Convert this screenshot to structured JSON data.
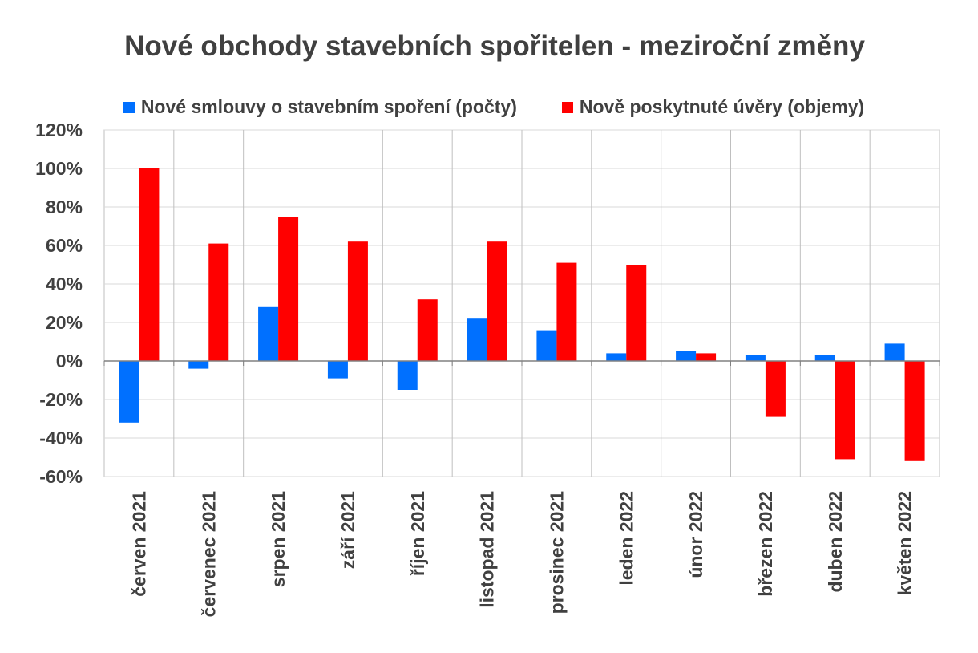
{
  "chart_data": {
    "type": "bar",
    "title": "Nové obchody stavebních spořitelen - meziroční změny",
    "categories": [
      "červen 2021",
      "červenec 2021",
      "srpen 2021",
      "září 2021",
      "říjen 2021",
      "listopad 2021",
      "prosinec 2021",
      "leden 2022",
      "únor 2022",
      "březen 2022",
      "duben 2022",
      "květen 2022"
    ],
    "series": [
      {
        "name": "Nové smlouvy o stavebním spoření (počty)",
        "color": "#0070FF",
        "values": [
          -32,
          -4,
          28,
          -9,
          -15,
          22,
          16,
          4,
          5,
          3,
          3,
          9
        ]
      },
      {
        "name": "Nově poskytnuté úvěry (objemy)",
        "color": "#FF0000",
        "values": [
          100,
          61,
          75,
          62,
          32,
          62,
          51,
          50,
          4,
          -29,
          -51,
          -52
        ]
      }
    ],
    "yticks": [
      "120%",
      "100%",
      "80%",
      "60%",
      "40%",
      "20%",
      "0%",
      "-20%",
      "-40%",
      "-60%"
    ],
    "ylim": [
      -60,
      120
    ],
    "grid": true,
    "legend_position": "top"
  }
}
